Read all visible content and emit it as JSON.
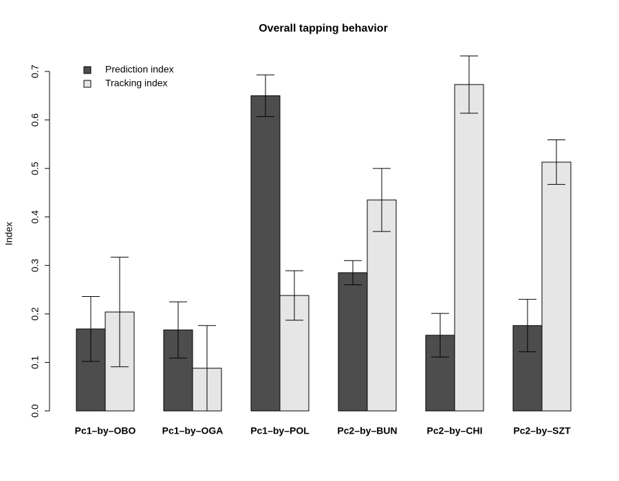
{
  "chart_data": {
    "type": "bar",
    "title": "Overall tapping behavior",
    "y_label": "Index",
    "categories": [
      "Pc1–by–OBO",
      "Pc1–by–OGA",
      "Pc1–by–POL",
      "Pc2–by–BUN",
      "Pc2–by–CHI",
      "Pc2–by–SZT"
    ],
    "series": [
      {
        "name": "Prediction index",
        "color": "#4d4d4d",
        "values": [
          0.169,
          0.167,
          0.65,
          0.285,
          0.156,
          0.176
        ],
        "errors": [
          0.067,
          0.058,
          0.043,
          0.025,
          0.045,
          0.054
        ]
      },
      {
        "name": "Tracking index",
        "color": "#e6e6e6",
        "values": [
          0.204,
          0.088,
          0.238,
          0.435,
          0.673,
          0.513
        ],
        "errors": [
          0.113,
          0.088,
          0.051,
          0.065,
          0.059,
          0.046
        ]
      }
    ],
    "ylim": [
      0,
      0.7
    ],
    "yticks": [
      {
        "value": 0,
        "label": "0.0"
      },
      0.1,
      0.2,
      0.3,
      0.4,
      0.5,
      0.6,
      0.7
    ],
    "legend": "top-left"
  }
}
